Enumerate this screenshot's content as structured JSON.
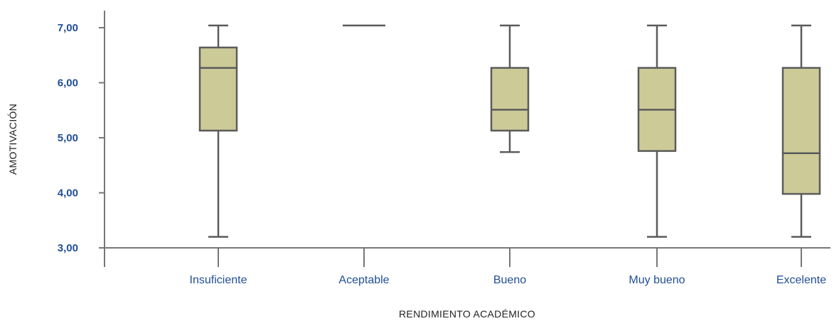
{
  "chart_data": {
    "type": "boxplot",
    "xlabel": "RENDIMIENTO ACADÉMICO",
    "ylabel": "AMOTIVACIÓN",
    "ylim": [
      3,
      7.15
    ],
    "yticks": [
      3,
      4,
      5,
      6,
      7
    ],
    "ytick_labels": [
      "3,00",
      "4,00",
      "5,00",
      "6,00",
      "7,00"
    ],
    "categories": [
      "Insuficiente",
      "Aceptable",
      "Bueno",
      "Muy bueno",
      "Excelente"
    ],
    "boxes": [
      {
        "category": "Insuficiente",
        "min": 3.2,
        "q1": 5.13,
        "median": 6.27,
        "q3": 6.64,
        "max": 7.04
      },
      {
        "category": "Aceptable",
        "min": 7.04,
        "q1": 7.04,
        "median": 7.04,
        "q3": 7.04,
        "max": 7.04
      },
      {
        "category": "Bueno",
        "min": 4.74,
        "q1": 5.13,
        "median": 5.51,
        "q3": 6.27,
        "max": 7.04
      },
      {
        "category": "Muy bueno",
        "min": 3.2,
        "q1": 4.76,
        "median": 5.51,
        "q3": 6.27,
        "max": 7.04
      },
      {
        "category": "Excelente",
        "min": 3.2,
        "q1": 3.98,
        "median": 4.72,
        "q3": 6.27,
        "max": 7.04
      }
    ],
    "colors": {
      "box_fill": "#cccb98",
      "box_stroke": "#5b5b5b",
      "axis": "#777777",
      "tick_label": "#1f4e96"
    }
  }
}
